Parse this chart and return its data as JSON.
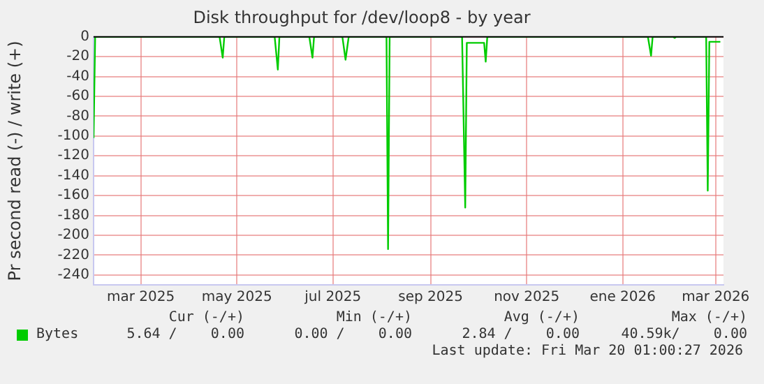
{
  "chart_data": {
    "type": "line",
    "title": "Disk throughput for /dev/loop8 - by year",
    "ylabel": "Pr second read (-) / write (+)",
    "x": [
      "2025-02-13",
      "2025-02-14",
      "2025-05-04",
      "2025-05-06",
      "2025-05-07",
      "2025-06-08",
      "2025-06-10",
      "2025-06-11",
      "2025-06-30",
      "2025-07-02",
      "2025-07-03",
      "2025-07-21",
      "2025-07-23",
      "2025-07-25",
      "2025-08-18",
      "2025-08-19",
      "2025-08-20",
      "2025-10-05",
      "2025-10-07",
      "2025-10-08",
      "2025-10-19",
      "2025-10-20",
      "2025-10-21",
      "2026-01-31",
      "2026-02-02",
      "2026-02-03",
      "2026-02-16",
      "2026-02-17",
      "2026-02-18",
      "2026-03-09",
      "2026-03-10",
      "2026-03-11",
      "2026-03-18"
    ],
    "series": [
      {
        "name": "Bytes",
        "color": "#00cc00",
        "values": [
          -102,
          0,
          0,
          -21,
          0,
          0,
          -33,
          0,
          0,
          -21,
          0,
          0,
          -23,
          0,
          0,
          -214,
          0,
          0,
          -172,
          -6,
          -6,
          -25,
          0,
          0,
          -19,
          0,
          0,
          -1,
          0,
          0,
          -155,
          -5,
          -5
        ]
      }
    ],
    "xlim": [
      "2025-02-13",
      "2026-03-20"
    ],
    "xticks": [
      {
        "value": "2025-03-15",
        "label": "mar 2025"
      },
      {
        "value": "2025-05-15",
        "label": "may 2025"
      },
      {
        "value": "2025-07-15",
        "label": "jul 2025"
      },
      {
        "value": "2025-09-15",
        "label": "sep 2025"
      },
      {
        "value": "2025-11-15",
        "label": "nov 2025"
      },
      {
        "value": "2026-01-15",
        "label": "ene 2026"
      },
      {
        "value": "2026-03-15",
        "label": "mar 2026"
      }
    ],
    "ylim": [
      -250,
      0
    ],
    "yticks": [
      0,
      -20,
      -40,
      -60,
      -80,
      -100,
      -120,
      -140,
      -160,
      -180,
      -200,
      -220,
      -240
    ],
    "grid": true,
    "legend": "bottom left",
    "marker": "none",
    "line_style": "solid",
    "ref_lines": [
      {
        "axis": "y",
        "value": 0,
        "color": "#000000"
      }
    ],
    "annotations": [
      "Cur (-/+)",
      "Min (-/+)",
      "Avg (-/+)",
      "Max (-/+)",
      "5.64 /    0.00",
      "0.00 /    0.00",
      "2.84 /    0.00",
      "40.59k/    0.00",
      "Last update: Fri Mar 20 01:00:27 2026"
    ]
  }
}
